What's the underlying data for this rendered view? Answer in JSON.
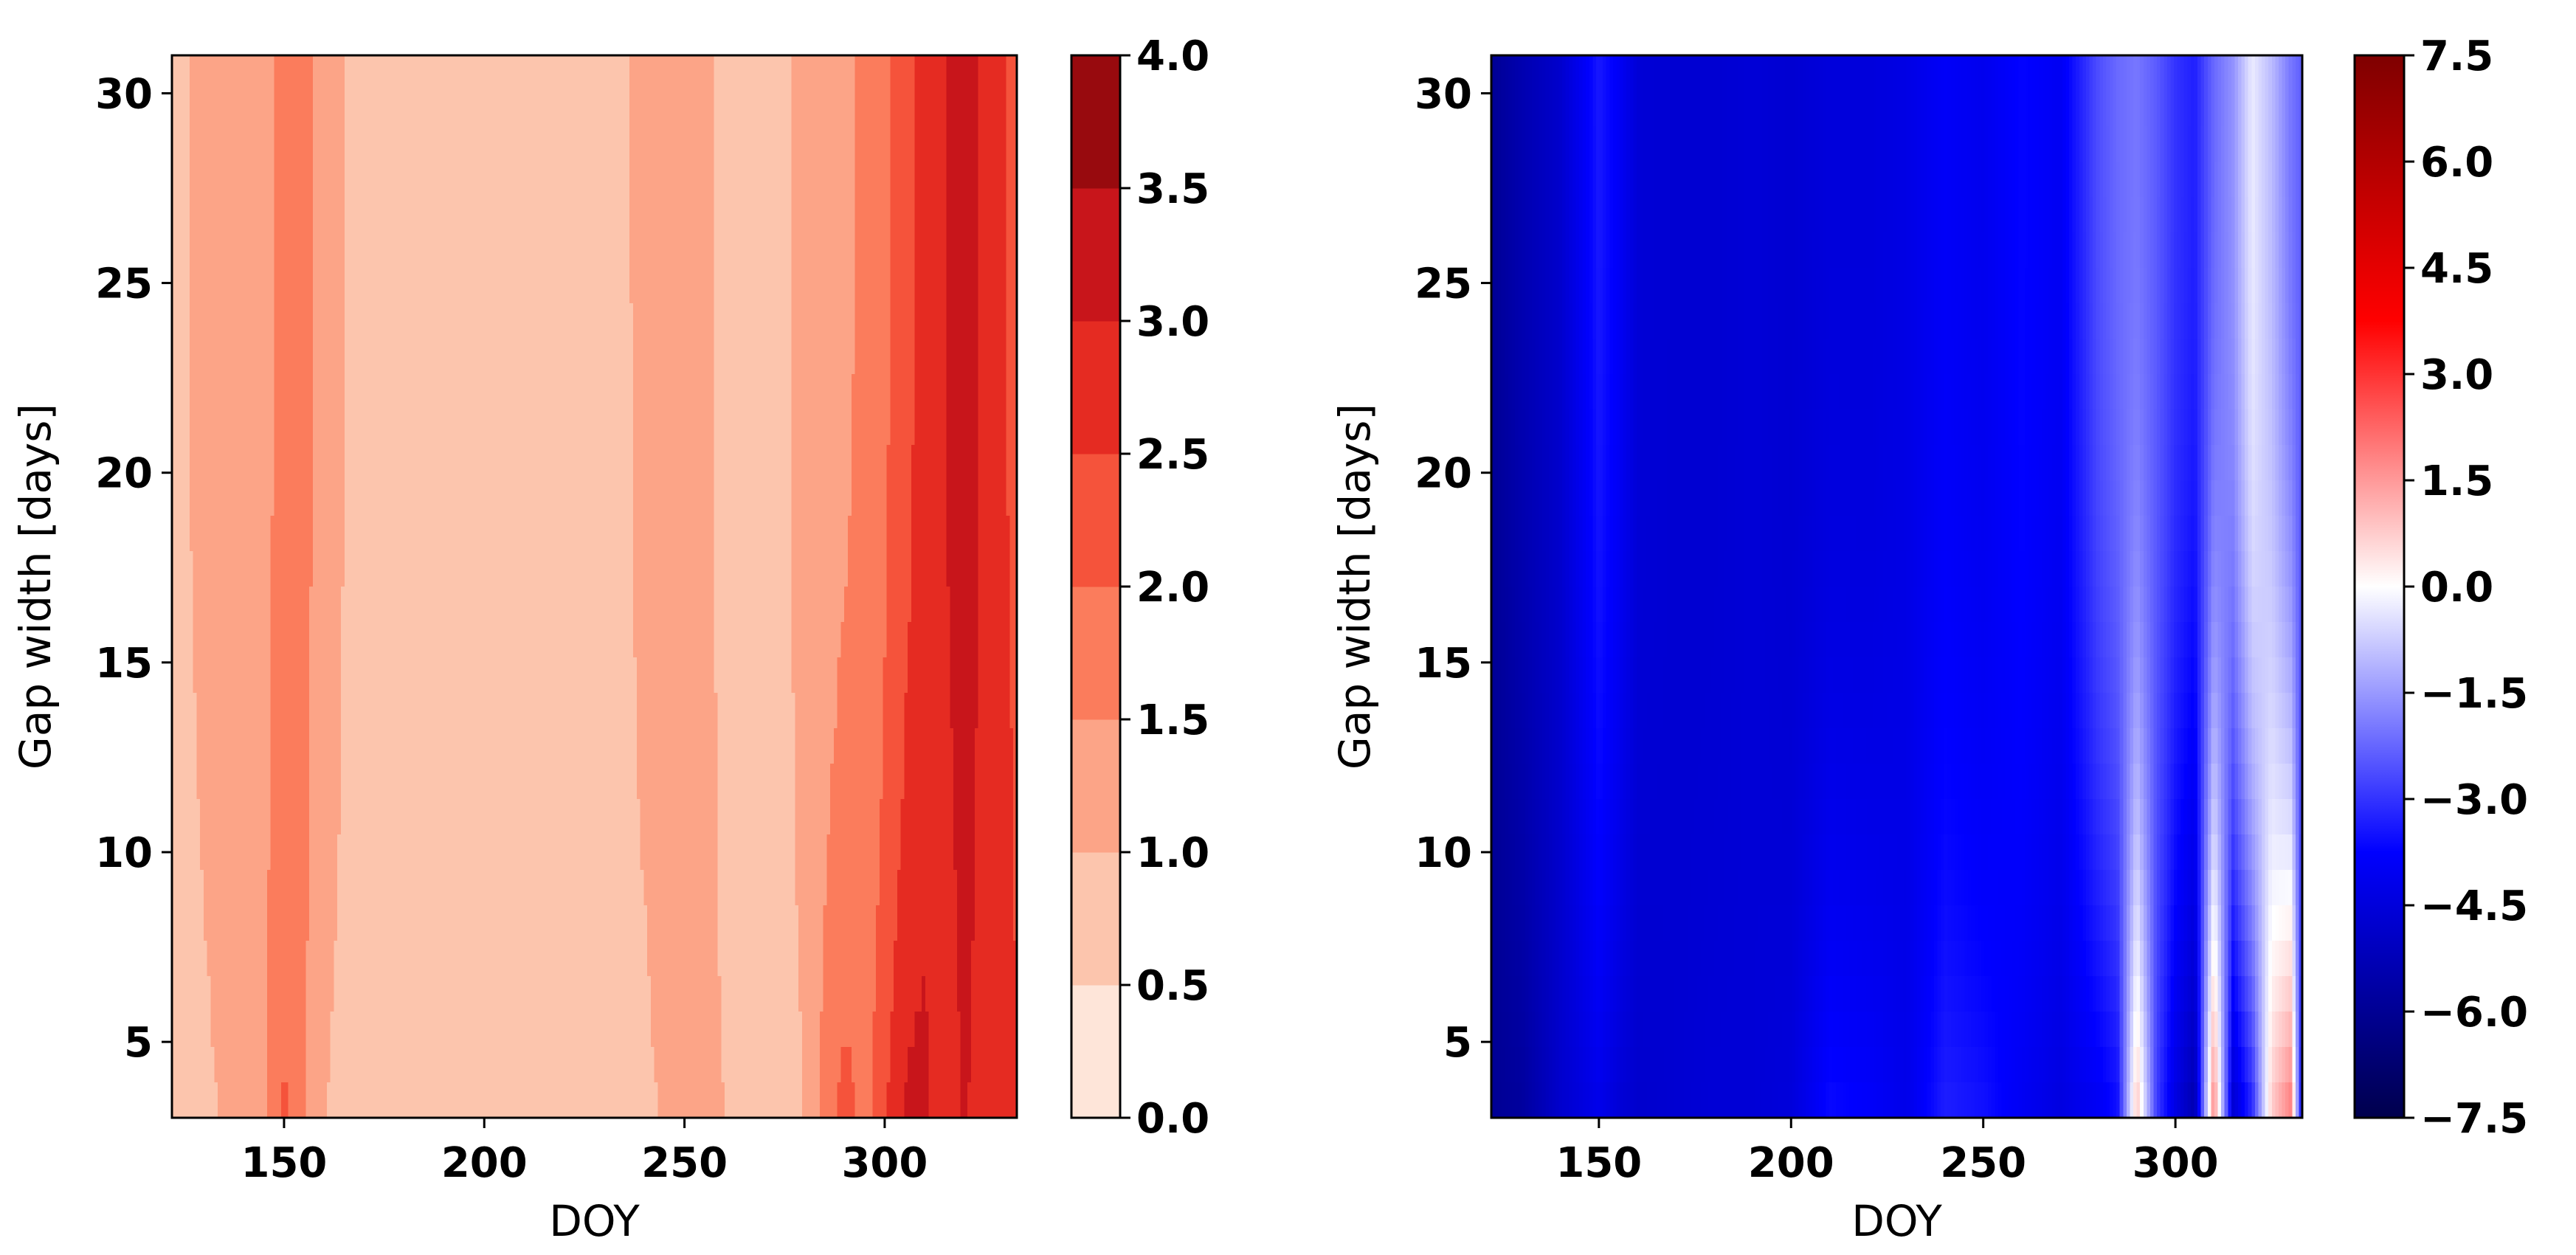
{
  "chart_data": [
    {
      "type": "heatmap",
      "style": "filled-contour",
      "xlabel": "DOY",
      "ylabel": "Gap width [days]",
      "xlim": [
        122,
        333
      ],
      "ylim": [
        3,
        31
      ],
      "x_ticks": [
        150,
        200,
        250,
        300
      ],
      "y_ticks": [
        5,
        10,
        15,
        20,
        25,
        30
      ],
      "colormap": "Reds",
      "colorbar": {
        "min": 0.0,
        "max": 4.0,
        "levels": [
          0.0,
          0.5,
          1.0,
          1.5,
          2.0,
          2.5,
          3.0,
          3.5,
          4.0
        ],
        "tick_labels": [
          "0.0",
          "0.5",
          "1.0",
          "1.5",
          "2.0",
          "2.5",
          "3.0",
          "3.5",
          "4.0"
        ],
        "colors": [
          "#fee5d9",
          "#fcc5ad",
          "#fca487",
          "#fb7c5c",
          "#f5533b",
          "#e52b22",
          "#c8151b",
          "#980a0e"
        ]
      },
      "field_by_doy": {
        "doy": [
          122,
          130,
          140,
          145,
          150,
          155,
          160,
          170,
          180,
          190,
          200,
          210,
          220,
          230,
          240,
          250,
          260,
          270,
          280,
          285,
          290,
          295,
          300,
          305,
          310,
          315,
          320,
          325,
          330,
          333
        ],
        "value_near_top": [
          0.9,
          1.1,
          1.3,
          1.4,
          1.6,
          1.7,
          1.2,
          0.8,
          0.8,
          0.8,
          0.8,
          0.9,
          0.8,
          0.8,
          1.1,
          1.3,
          0.9,
          0.8,
          1.1,
          1.3,
          1.4,
          1.6,
          1.9,
          2.3,
          2.7,
          3.0,
          3.3,
          2.9,
          2.5,
          2.4
        ],
        "value_near_bottom": [
          0.7,
          0.9,
          1.2,
          1.4,
          2.1,
          1.5,
          1.0,
          0.8,
          0.9,
          0.9,
          0.8,
          0.9,
          0.8,
          0.8,
          0.9,
          1.2,
          1.0,
          0.8,
          1.0,
          1.7,
          2.2,
          1.8,
          2.4,
          3.1,
          3.2,
          2.5,
          3.1,
          2.6,
          2.9,
          2.5
        ]
      }
    },
    {
      "type": "heatmap",
      "style": "continuous",
      "xlabel": "DOY",
      "ylabel": "Gap width [days]",
      "xlim": [
        122,
        333
      ],
      "ylim": [
        3,
        31
      ],
      "x_ticks": [
        150,
        200,
        250,
        300
      ],
      "y_ticks": [
        5,
        10,
        15,
        20,
        25,
        30
      ],
      "colormap": "seismic",
      "colorbar": {
        "min": -7.5,
        "max": 7.5,
        "tick_labels": [
          "−7.5",
          "−6.0",
          "−4.5",
          "−3.0",
          "−1.5",
          "0.0",
          "1.5",
          "3.0",
          "4.5",
          "6.0",
          "7.5"
        ],
        "tick_values": [
          -7.5,
          -6.0,
          -4.5,
          -3.0,
          -1.5,
          0.0,
          1.5,
          3.0,
          4.5,
          6.0,
          7.5
        ]
      },
      "field_by_doy": {
        "doy": [
          122,
          130,
          140,
          150,
          155,
          160,
          170,
          180,
          190,
          200,
          210,
          220,
          230,
          240,
          250,
          260,
          270,
          280,
          285,
          290,
          295,
          300,
          305,
          310,
          315,
          320,
          325,
          330,
          333
        ],
        "value_near_top": [
          -6.0,
          -5.4,
          -4.8,
          -3.4,
          -3.9,
          -4.6,
          -4.7,
          -4.7,
          -4.6,
          -4.7,
          -4.5,
          -4.5,
          -4.3,
          -3.9,
          -4.1,
          -3.7,
          -4.0,
          -2.6,
          -2.2,
          -2.0,
          -2.4,
          -3.0,
          -3.3,
          -2.2,
          -1.6,
          -0.3,
          -1.0,
          -2.0,
          -2.4
        ],
        "value_near_bottom": [
          -6.0,
          -5.8,
          -4.8,
          -4.2,
          -4.6,
          -4.8,
          -4.7,
          -4.6,
          -4.6,
          -4.5,
          -3.6,
          -3.8,
          -4.2,
          -3.3,
          -3.5,
          -4.0,
          -4.4,
          -4.0,
          -3.6,
          1.0,
          -2.8,
          -4.4,
          -5.5,
          2.0,
          -4.8,
          -3.2,
          0.8,
          2.0,
          -4.0
        ]
      }
    }
  ]
}
